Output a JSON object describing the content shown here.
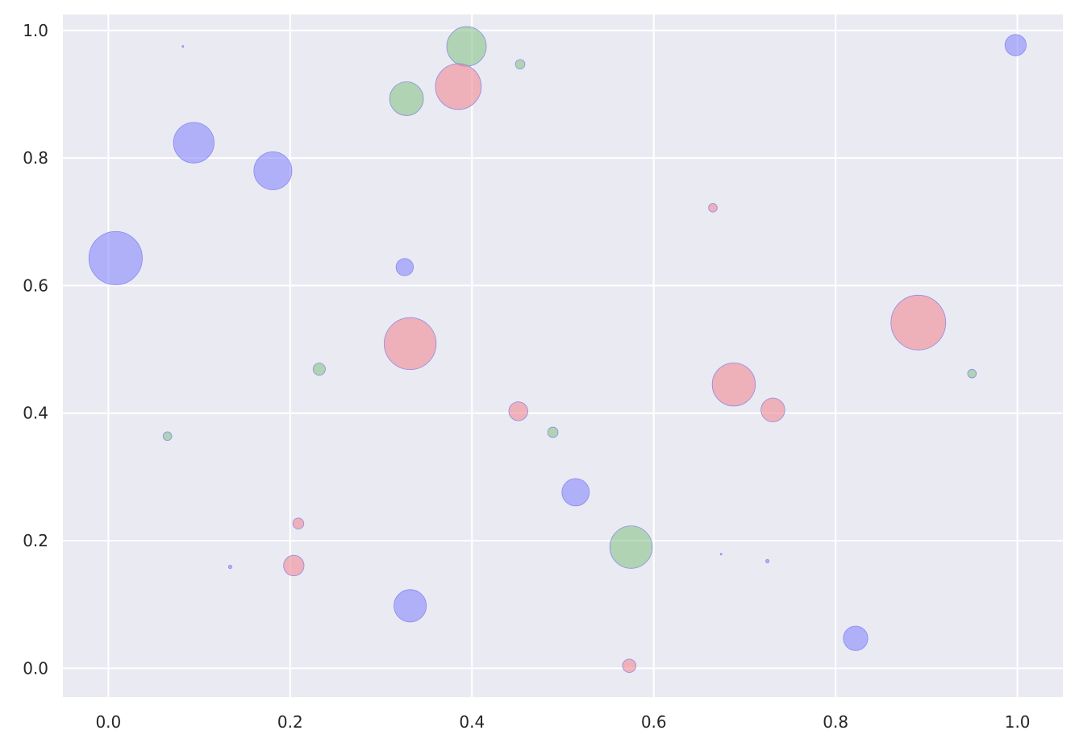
{
  "chart_data": {
    "type": "scatter",
    "title": "",
    "xlabel": "",
    "ylabel": "",
    "xlim": [
      -0.05,
      1.05
    ],
    "ylim": [
      -0.045,
      1.025
    ],
    "grid": true,
    "x_ticks": [
      "0.0",
      "0.2",
      "0.4",
      "0.6",
      "0.8",
      "1.0"
    ],
    "y_ticks": [
      "0.0",
      "0.2",
      "0.4",
      "0.6",
      "0.8",
      "1.0"
    ],
    "colors": {
      "blue": "#8080ff",
      "green": "#7fbf7f",
      "red": "#f0808a",
      "background": "#eaeaf2"
    },
    "series": [
      {
        "color_key": "blue",
        "points": [
          {
            "x": 0.008,
            "y": 0.643,
            "size": 0.95
          },
          {
            "x": 0.094,
            "y": 0.824,
            "size": 0.55
          },
          {
            "x": 0.181,
            "y": 0.78,
            "size": 0.48
          },
          {
            "x": 0.326,
            "y": 0.629,
            "size": 0.1
          },
          {
            "x": 0.332,
            "y": 0.098,
            "size": 0.35
          },
          {
            "x": 0.514,
            "y": 0.276,
            "size": 0.25
          },
          {
            "x": 0.822,
            "y": 0.047,
            "size": 0.2
          },
          {
            "x": 0.998,
            "y": 0.977,
            "size": 0.15
          },
          {
            "x": 0.082,
            "y": 0.975,
            "size": 0.001
          },
          {
            "x": 0.134,
            "y": 0.159,
            "size": 0.004
          },
          {
            "x": 0.674,
            "y": 0.179,
            "size": 0.001
          },
          {
            "x": 0.725,
            "y": 0.168,
            "size": 0.004
          }
        ]
      },
      {
        "color_key": "green",
        "points": [
          {
            "x": 0.394,
            "y": 0.975,
            "size": 0.52
          },
          {
            "x": 0.328,
            "y": 0.893,
            "size": 0.38
          },
          {
            "x": 0.453,
            "y": 0.947,
            "size": 0.03
          },
          {
            "x": 0.232,
            "y": 0.469,
            "size": 0.05
          },
          {
            "x": 0.065,
            "y": 0.364,
            "size": 0.025
          },
          {
            "x": 0.489,
            "y": 0.37,
            "size": 0.036
          },
          {
            "x": 0.575,
            "y": 0.19,
            "size": 0.6
          },
          {
            "x": 0.95,
            "y": 0.462,
            "size": 0.025
          }
        ]
      },
      {
        "color_key": "red",
        "points": [
          {
            "x": 0.385,
            "y": 0.912,
            "size": 0.7
          },
          {
            "x": 0.332,
            "y": 0.509,
            "size": 0.9
          },
          {
            "x": 0.451,
            "y": 0.403,
            "size": 0.12
          },
          {
            "x": 0.209,
            "y": 0.227,
            "size": 0.04
          },
          {
            "x": 0.204,
            "y": 0.161,
            "size": 0.14
          },
          {
            "x": 0.665,
            "y": 0.722,
            "size": 0.025
          },
          {
            "x": 0.688,
            "y": 0.445,
            "size": 0.62
          },
          {
            "x": 0.731,
            "y": 0.405,
            "size": 0.19
          },
          {
            "x": 0.891,
            "y": 0.542,
            "size": 1.0
          },
          {
            "x": 0.573,
            "y": 0.004,
            "size": 0.06
          }
        ]
      }
    ]
  }
}
